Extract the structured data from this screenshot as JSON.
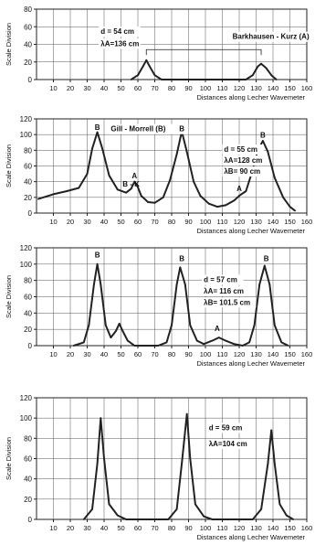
{
  "chart_data": [
    {
      "type": "line",
      "ylabel": "Scale Division",
      "xlabel": "Distances along Lecher Wavemeter",
      "xlim": [
        0,
        160
      ],
      "ylim": [
        0,
        80
      ],
      "xticks": [
        "10",
        "20",
        "30",
        "40",
        "50",
        "60",
        "70",
        "80",
        "90",
        "100",
        "110",
        "120",
        "130",
        "140",
        "150",
        "160"
      ],
      "yticks": [
        "0",
        "20",
        "40",
        "60",
        "80"
      ],
      "grid": true,
      "annotations": [
        {
          "text": "d = 54 cm",
          "x": 38,
          "y": 52
        },
        {
          "text": "λA=136 cm",
          "x": 38,
          "y": 38
        },
        {
          "text": "Barkhausen - Kurz (A)",
          "x": 116,
          "y": 46
        }
      ],
      "series": [
        {
          "points": [
            [
              56,
              0
            ],
            [
              60,
              5
            ],
            [
              63,
              15
            ],
            [
              65,
              22
            ],
            [
              67,
              15
            ],
            [
              70,
              5
            ],
            [
              74,
              0
            ],
            [
              124,
              0
            ],
            [
              128,
              5
            ],
            [
              131,
              15
            ],
            [
              133,
              18
            ],
            [
              136,
              13
            ],
            [
              139,
              5
            ],
            [
              142,
              0
            ]
          ]
        }
      ]
    },
    {
      "type": "line",
      "ylabel": "Scale Division",
      "xlabel": "Distances along Lecher Wavemeter",
      "xlim": [
        0,
        160
      ],
      "ylim": [
        0,
        120
      ],
      "xticks": [
        "10",
        "20",
        "30",
        "40",
        "50",
        "60",
        "70",
        "80",
        "90",
        "100",
        "110",
        "120",
        "130",
        "140",
        "150",
        "160"
      ],
      "yticks": [
        "0",
        "20",
        "40",
        "60",
        "80",
        "100",
        "120"
      ],
      "grid": true,
      "annotations": [
        {
          "text": "Gill - Morrell (B)",
          "x": 44,
          "y": 104
        },
        {
          "text": "d = 55 cm",
          "x": 111,
          "y": 78
        },
        {
          "text": "λA=128 cm",
          "x": 111,
          "y": 64
        },
        {
          "text": "λB= 90 cm",
          "x": 111,
          "y": 50
        },
        {
          "text": "B",
          "x": 36,
          "y": 106
        },
        {
          "text": "A",
          "x": 58,
          "y": 44
        },
        {
          "text": "B - K",
          "x": 56,
          "y": 34
        },
        {
          "text": "B",
          "x": 86,
          "y": 104
        },
        {
          "text": "A",
          "x": 120,
          "y": 28
        },
        {
          "text": "B",
          "x": 134,
          "y": 96
        }
      ],
      "series": [
        {
          "points": [
            [
              1,
              18
            ],
            [
              10,
              24
            ],
            [
              18,
              28
            ],
            [
              25,
              32
            ],
            [
              30,
              50
            ],
            [
              33,
              82
            ],
            [
              36,
              103
            ],
            [
              39,
              82
            ],
            [
              43,
              48
            ],
            [
              48,
              30
            ],
            [
              53,
              26
            ],
            [
              56,
              31
            ],
            [
              58,
              40
            ],
            [
              60,
              33
            ],
            [
              62,
              22
            ],
            [
              66,
              14
            ],
            [
              70,
              13
            ],
            [
              75,
              20
            ],
            [
              79,
              42
            ],
            [
              83,
              75
            ],
            [
              86,
              104
            ],
            [
              89,
              78
            ],
            [
              93,
              40
            ],
            [
              97,
              22
            ],
            [
              102,
              12
            ],
            [
              107,
              8
            ],
            [
              112,
              10
            ],
            [
              117,
              16
            ],
            [
              120,
              22
            ],
            [
              124,
              28
            ],
            [
              128,
              55
            ],
            [
              131,
              80
            ],
            [
              134,
              92
            ],
            [
              137,
              78
            ],
            [
              141,
              45
            ],
            [
              146,
              20
            ],
            [
              150,
              8
            ],
            [
              153,
              3
            ]
          ]
        }
      ]
    },
    {
      "type": "line",
      "ylabel": "Scale Division",
      "xlabel": "Distances along Lecher Wavemeter",
      "xlim": [
        0,
        160
      ],
      "ylim": [
        0,
        120
      ],
      "xticks": [
        "10",
        "20",
        "30",
        "40",
        "50",
        "60",
        "70",
        "80",
        "90",
        "100",
        "110",
        "120",
        "130",
        "140",
        "150",
        "160"
      ],
      "yticks": [
        "0",
        "20",
        "40",
        "60",
        "80",
        "100",
        "120"
      ],
      "grid": true,
      "annotations": [
        {
          "text": "d = 57 cm",
          "x": 99,
          "y": 78
        },
        {
          "text": "λA= 116 cm",
          "x": 99,
          "y": 64
        },
        {
          "text": "λB= 101.5 cm",
          "x": 99,
          "y": 50
        },
        {
          "text": "B",
          "x": 36,
          "y": 108
        },
        {
          "text": "B",
          "x": 86,
          "y": 104
        },
        {
          "text": "A",
          "x": 107,
          "y": 18
        },
        {
          "text": "B",
          "x": 136,
          "y": 104
        }
      ],
      "series": [
        {
          "points": [
            [
              22,
              0
            ],
            [
              28,
              4
            ],
            [
              31,
              25
            ],
            [
              34,
              75
            ],
            [
              36,
              100
            ],
            [
              38,
              75
            ],
            [
              41,
              25
            ],
            [
              44,
              10
            ],
            [
              47,
              18
            ],
            [
              49,
              27
            ],
            [
              51,
              18
            ],
            [
              54,
              6
            ],
            [
              58,
              0
            ],
            [
              72,
              0
            ],
            [
              77,
              4
            ],
            [
              80,
              25
            ],
            [
              83,
              75
            ],
            [
              85,
              96
            ],
            [
              88,
              75
            ],
            [
              91,
              25
            ],
            [
              95,
              6
            ],
            [
              99,
              2
            ],
            [
              104,
              6
            ],
            [
              108,
              10
            ],
            [
              112,
              6
            ],
            [
              117,
              2
            ],
            [
              122,
              0
            ],
            [
              126,
              4
            ],
            [
              129,
              25
            ],
            [
              132,
              75
            ],
            [
              135,
              98
            ],
            [
              138,
              75
            ],
            [
              141,
              25
            ],
            [
              145,
              4
            ],
            [
              149,
              0
            ]
          ]
        }
      ]
    },
    {
      "type": "line",
      "ylabel": "Scale Division",
      "xlabel": "Distances along Lecher Wavemeter",
      "xlim": [
        0,
        160
      ],
      "ylim": [
        0,
        120
      ],
      "xticks": [
        "10",
        "20",
        "30",
        "40",
        "50",
        "60",
        "70",
        "80",
        "90",
        "100",
        "110",
        "120",
        "130",
        "140",
        "150",
        "160"
      ],
      "yticks": [
        "0",
        "20",
        "40",
        "60",
        "80",
        "100",
        "120"
      ],
      "grid": true,
      "annotations": [
        {
          "text": "d = 59 cm",
          "x": 102,
          "y": 88
        },
        {
          "text": "λA=104 cm",
          "x": 102,
          "y": 72
        }
      ],
      "series": [
        {
          "points": [
            [
              28,
              0
            ],
            [
              33,
              10
            ],
            [
              36,
              55
            ],
            [
              38,
              100
            ],
            [
              40,
              60
            ],
            [
              43,
              15
            ],
            [
              48,
              4
            ],
            [
              53,
              0
            ],
            [
              78,
              0
            ],
            [
              83,
              10
            ],
            [
              86,
              55
            ],
            [
              89,
              104
            ],
            [
              91,
              60
            ],
            [
              94,
              15
            ],
            [
              99,
              3
            ],
            [
              104,
              0
            ],
            [
              128,
              0
            ],
            [
              133,
              10
            ],
            [
              137,
              55
            ],
            [
              139,
              88
            ],
            [
              141,
              55
            ],
            [
              144,
              15
            ],
            [
              148,
              4
            ],
            [
              152,
              0
            ]
          ]
        }
      ]
    }
  ]
}
